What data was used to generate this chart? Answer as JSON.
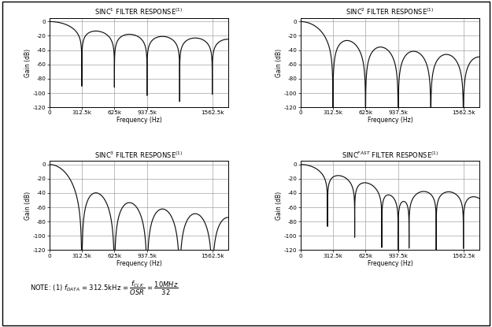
{
  "ylabel": "Gain (dB)",
  "xlabel": "Frequency (Hz)",
  "ylim": [
    -120,
    0
  ],
  "xlim": [
    0,
    1718750
  ],
  "yticks": [
    0,
    -20,
    -40,
    -60,
    -80,
    -100,
    -120
  ],
  "xtick_vals": [
    0,
    312500,
    625000,
    937500,
    1562500
  ],
  "xtick_labels": [
    "0",
    "312.5k",
    "625k",
    "937.5k",
    "1562.5k"
  ],
  "fdata": 312500,
  "line_color": "#111111",
  "bg_color": "#ffffff",
  "grid_color": "#999999",
  "grid_color_dark": "#555555",
  "note_text": "NOTE: (1) f_{DATA} = 312.5kHz = \\frac{f_{CLK}}{OSR} = \\frac{10MHz}{32}"
}
